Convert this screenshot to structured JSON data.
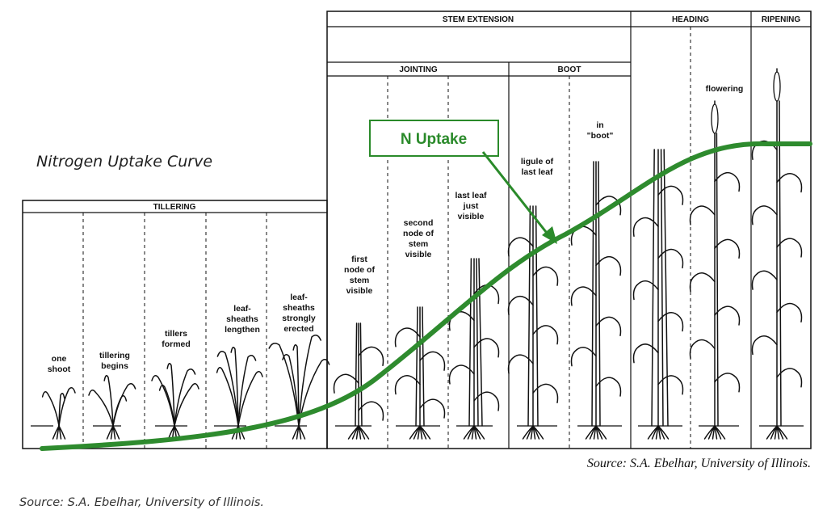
{
  "title": "Nitrogen Uptake Curve",
  "callout": "N Uptake",
  "stages": {
    "tillering": "TILLERING",
    "stem_extension": "STEM EXTENSION",
    "jointing": "JOINTING",
    "boot": "BOOT",
    "heading": "HEADING",
    "ripening": "RIPENING"
  },
  "growth_labels": [
    "one|shoot",
    "tillering|begins",
    "tillers|formed",
    "leaf-|sheaths|lengthen",
    "leaf-|sheaths|strongly|erected",
    "first|node of|stem|visible",
    "second|node of|stem|visible",
    "last leaf|just|visible",
    "ligule of|last leaf",
    "in|\"boot\"",
    "flowering"
  ],
  "source_inner": "Source: S.A. Ebelhar, University of Illinois.",
  "source_outer": "Source: S.A. Ebelhar, University of Illinois.",
  "colors": {
    "curve": "#2e8b2e",
    "callout_text": "#2a8a2a",
    "lines": "#111111"
  }
}
